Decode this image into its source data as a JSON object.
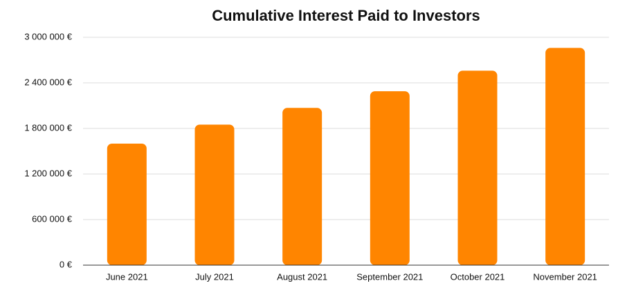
{
  "chart_data": {
    "type": "bar",
    "title": "Cumulative Interest Paid to Investors",
    "categories": [
      "June 2021",
      "July 2021",
      "August 2021",
      "September 2021",
      "October 2021",
      "November 2021"
    ],
    "values": [
      1600000,
      1850000,
      2070000,
      2290000,
      2560000,
      2860000
    ],
    "color": "#ff8500",
    "ylim": [
      0,
      3000000
    ],
    "yticks": [
      {
        "value": 0,
        "label": "0 €"
      },
      {
        "value": 600000,
        "label": "600 000 €"
      },
      {
        "value": 1200000,
        "label": "1 200 000 €"
      },
      {
        "value": 1800000,
        "label": "1 800 000 €"
      },
      {
        "value": 2400000,
        "label": "2 400 000 €"
      },
      {
        "value": 3000000,
        "label": "3 000 000 €"
      }
    ],
    "grid": true
  }
}
